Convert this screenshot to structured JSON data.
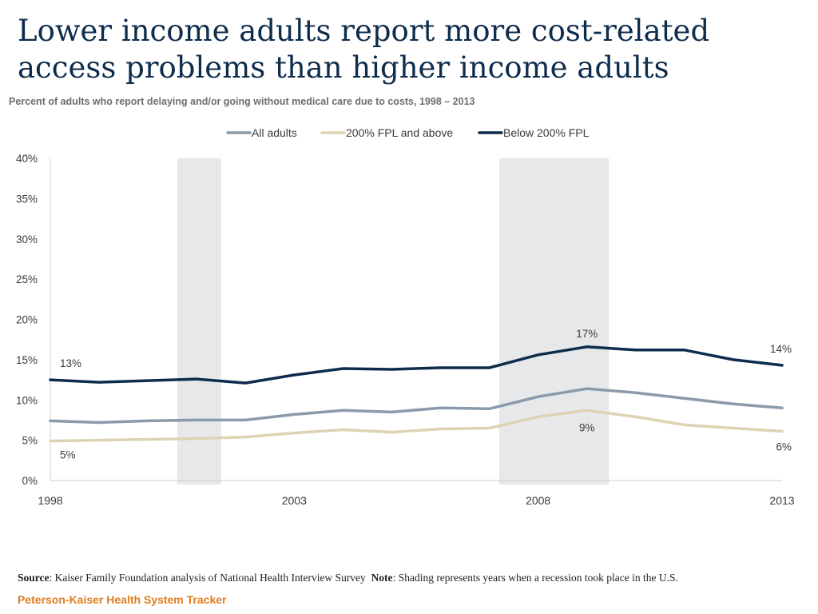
{
  "header": {
    "title": "Lower income adults report more cost-related access problems than higher income adults",
    "subtitle": "Percent of adults who report delaying and/or going without medical care due to costs, 1998 – 2013"
  },
  "chart_data": {
    "type": "line",
    "title": "Lower income adults report more cost-related access problems than higher income adults",
    "subtitle": "Percent of adults who report delaying and/or going without medical care due to costs, 1998 – 2013",
    "xlabel": "",
    "ylabel": "",
    "x": [
      1998,
      1999,
      2000,
      2001,
      2002,
      2003,
      2004,
      2005,
      2006,
      2007,
      2008,
      2009,
      2010,
      2011,
      2012,
      2013
    ],
    "x_tick_labels": [
      "1998",
      "2003",
      "2008",
      "2013"
    ],
    "x_tick_values": [
      1998,
      2003,
      2008,
      2013
    ],
    "ylim": [
      0,
      40
    ],
    "y_ticks": [
      0,
      5,
      10,
      15,
      20,
      25,
      30,
      35,
      40
    ],
    "y_tick_labels": [
      "0%",
      "5%",
      "10%",
      "15%",
      "20%",
      "25%",
      "30%",
      "35%",
      "40%"
    ],
    "grid": false,
    "legend_position": "top-center",
    "series": [
      {
        "name": "All adults",
        "color": "#8a9aaa",
        "values": [
          7.4,
          7.2,
          7.4,
          7.5,
          7.5,
          8.2,
          8.7,
          8.5,
          9.0,
          8.9,
          10.4,
          11.4,
          10.9,
          10.2,
          9.5,
          9.0
        ]
      },
      {
        "name": "200% FPL and above",
        "color": "#ddd3b3",
        "values": [
          4.9,
          5.0,
          5.1,
          5.2,
          5.4,
          5.9,
          6.3,
          6.0,
          6.4,
          6.5,
          7.9,
          8.7,
          7.9,
          6.9,
          6.5,
          6.1
        ]
      },
      {
        "name": "Below 200% FPL",
        "color": "#0e2c4c",
        "values": [
          12.5,
          12.2,
          12.4,
          12.6,
          12.1,
          13.1,
          13.9,
          13.8,
          14.0,
          14.0,
          15.6,
          16.6,
          16.2,
          16.2,
          15.0,
          14.3
        ]
      }
    ],
    "recessions": [
      {
        "start": 2000.6,
        "end": 2001.5
      },
      {
        "start": 2007.2,
        "end": 2009.45
      }
    ],
    "data_labels": [
      {
        "text": "13%",
        "series": "Below 200% FPL",
        "x": 1998
      },
      {
        "text": "5%",
        "series": "200% FPL and above",
        "x": 1998
      },
      {
        "text": "17%",
        "series": "Below 200% FPL",
        "x": 2009
      },
      {
        "text": "9%",
        "series": "200% FPL and above",
        "x": 2009
      },
      {
        "text": "14%",
        "series": "Below 200% FPL",
        "x": 2013
      },
      {
        "text": "6%",
        "series": "200% FPL and above",
        "x": 2013
      }
    ]
  },
  "footer": {
    "source_label": "Source",
    "source_text": ": Kaiser Family Foundation analysis of ",
    "source_survey": "National Health Interview Survey",
    "note_label": "Note",
    "note_text": ": Shading represents years when a recession took place in the U.S.",
    "brand": "Peterson-Kaiser Health System Tracker"
  }
}
